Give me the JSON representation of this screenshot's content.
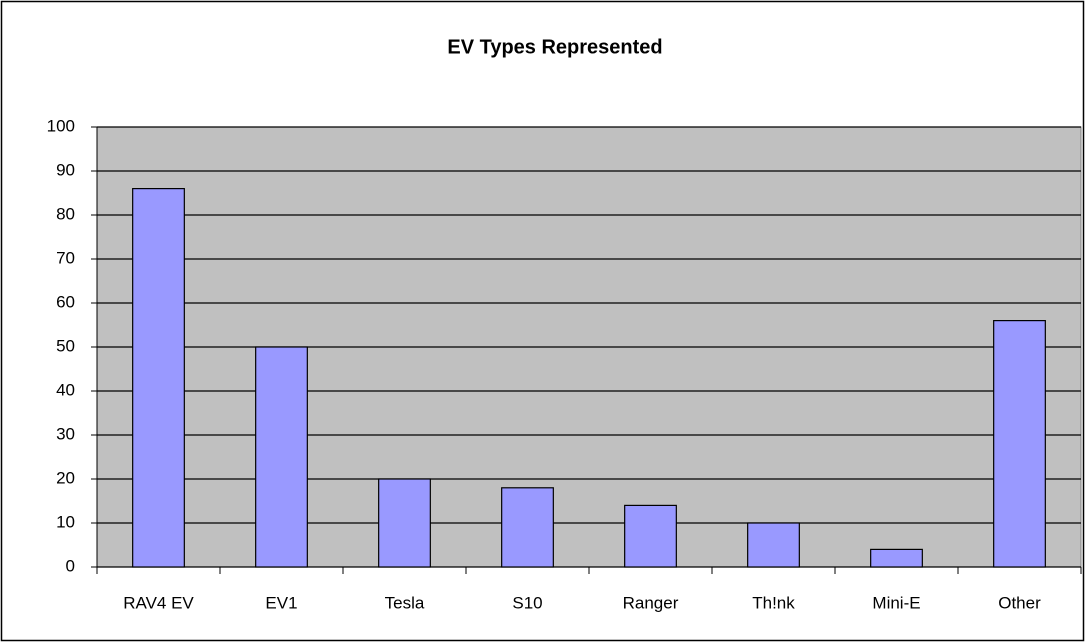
{
  "chart_data": {
    "type": "bar",
    "title": "EV Types Represented",
    "categories": [
      "RAV4 EV",
      "EV1",
      "Tesla",
      "S10",
      "Ranger",
      "Th!nk",
      "Mini-E",
      "Other"
    ],
    "values": [
      86,
      50,
      20,
      18,
      14,
      10,
      4,
      56
    ],
    "color": "#9999ff",
    "ylim": [
      0,
      100
    ],
    "yticks": [
      0,
      10,
      20,
      30,
      40,
      50,
      60,
      70,
      80,
      90,
      100
    ],
    "grid": true
  }
}
